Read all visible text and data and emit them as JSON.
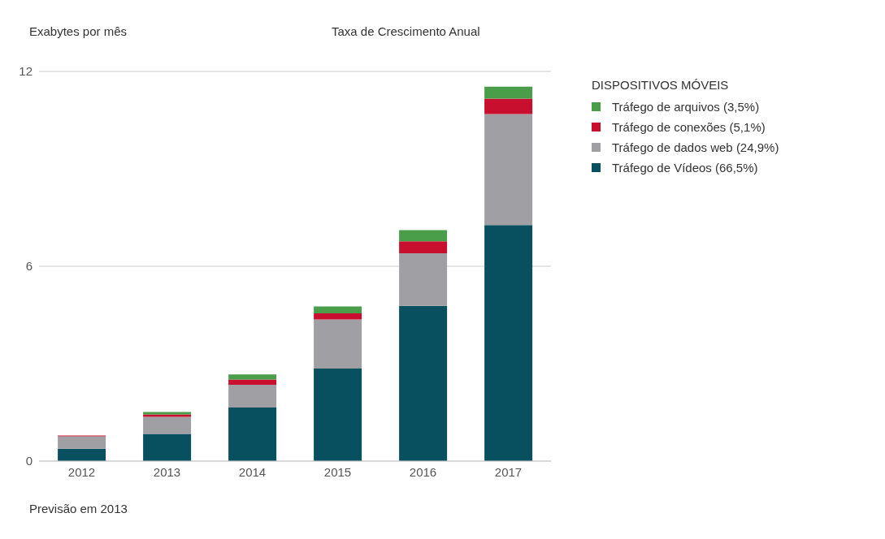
{
  "chart_data": {
    "type": "bar",
    "title": "Taxa de Crescimento Anual",
    "ylabel": "Exabytes por mês",
    "legend_title": "DISPOSITIVOS MÓVEIS",
    "categories": [
      "2012",
      "2013",
      "2014",
      "2015",
      "2016",
      "2017"
    ],
    "stacked": true,
    "series": [
      {
        "name": "Tráfego de Vídeos (66,5%)",
        "color": "#08505f",
        "values": [
          0.38,
          0.84,
          1.65,
          2.85,
          4.78,
          7.27
        ]
      },
      {
        "name": "Tráfego de dados web (24,9%)",
        "color": "#a0a0a4",
        "values": [
          0.38,
          0.52,
          0.7,
          1.51,
          1.62,
          3.42
        ]
      },
      {
        "name": "Tráfego de conexões (5,1%)",
        "color": "#c8102e",
        "values": [
          0.03,
          0.08,
          0.16,
          0.19,
          0.37,
          0.47
        ]
      },
      {
        "name": "Tráfego de arquivos (3,5%)",
        "color": "#4a9e4a",
        "values": [
          null,
          0.07,
          0.16,
          0.21,
          0.34,
          0.37
        ]
      }
    ],
    "ylim": [
      0,
      12
    ],
    "yticks": [
      0,
      6,
      12
    ],
    "grid": "y",
    "legend": "right",
    "annotations": [
      "Previsão em 2013"
    ]
  }
}
